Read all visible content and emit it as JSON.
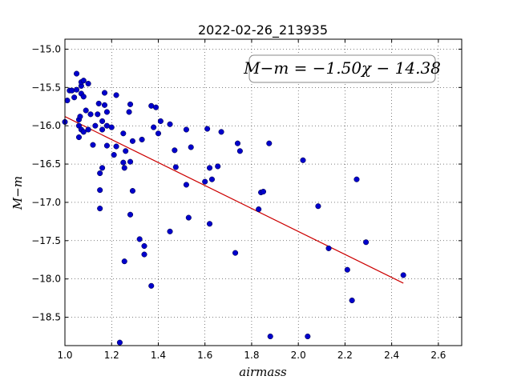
{
  "chart_data": {
    "type": "scatter",
    "title": "2022-02-26_213935",
    "xlabel": "airmass",
    "ylabel": "M−m",
    "xlim": [
      1.0,
      2.7
    ],
    "ylim": [
      -14.87,
      -18.87
    ],
    "xticks": [
      1.0,
      1.2,
      1.4,
      1.6,
      1.8,
      2.0,
      2.2,
      2.4,
      2.6
    ],
    "xtick_labels": [
      "1.0",
      "1.2",
      "1.4",
      "1.6",
      "1.8",
      "2.0",
      "2.2",
      "2.4",
      "2.6"
    ],
    "yticks": [
      -15.0,
      -15.5,
      -16.0,
      -16.5,
      -17.0,
      -17.5,
      -18.0,
      -18.5
    ],
    "ytick_labels": [
      "−15.0",
      "−15.5",
      "−16.0",
      "−16.5",
      "−17.0",
      "−17.5",
      "−18.0",
      "−18.5"
    ],
    "grid": true,
    "annotation": "M−m = −1.50χ − 14.38",
    "fit": {
      "slope": -1.5,
      "intercept": -14.38,
      "x_range": [
        1.0,
        2.45
      ],
      "color": "#cc0000"
    },
    "point_color": "#0000cc",
    "points": [
      [
        1.0,
        -15.95
      ],
      [
        1.01,
        -15.67
      ],
      [
        1.02,
        -15.54
      ],
      [
        1.03,
        -15.54
      ],
      [
        1.04,
        -15.63
      ],
      [
        1.05,
        -15.53
      ],
      [
        1.05,
        -15.32
      ],
      [
        1.06,
        -15.92
      ],
      [
        1.06,
        -16.0
      ],
      [
        1.06,
        -16.15
      ],
      [
        1.065,
        -15.88
      ],
      [
        1.07,
        -16.05
      ],
      [
        1.07,
        -15.48
      ],
      [
        1.07,
        -15.43
      ],
      [
        1.07,
        -15.58
      ],
      [
        1.08,
        -15.41
      ],
      [
        1.08,
        -15.62
      ],
      [
        1.08,
        -16.08
      ],
      [
        1.09,
        -15.8
      ],
      [
        1.1,
        -15.45
      ],
      [
        1.1,
        -16.05
      ],
      [
        1.11,
        -15.85
      ],
      [
        1.12,
        -16.25
      ],
      [
        1.13,
        -16.0
      ],
      [
        1.14,
        -15.85
      ],
      [
        1.145,
        -15.71
      ],
      [
        1.15,
        -16.84
      ],
      [
        1.15,
        -17.08
      ],
      [
        1.15,
        -16.62
      ],
      [
        1.16,
        -16.55
      ],
      [
        1.16,
        -15.94
      ],
      [
        1.16,
        -16.05
      ],
      [
        1.17,
        -15.73
      ],
      [
        1.17,
        -15.57
      ],
      [
        1.18,
        -16.0
      ],
      [
        1.18,
        -15.82
      ],
      [
        1.18,
        -16.26
      ],
      [
        1.2,
        -16.02
      ],
      [
        1.21,
        -16.38
      ],
      [
        1.22,
        -15.6
      ],
      [
        1.22,
        -16.27
      ],
      [
        1.235,
        -18.83
      ],
      [
        1.25,
        -16.1
      ],
      [
        1.25,
        -16.48
      ],
      [
        1.255,
        -16.55
      ],
      [
        1.26,
        -16.33
      ],
      [
        1.255,
        -17.77
      ],
      [
        1.275,
        -15.82
      ],
      [
        1.28,
        -15.72
      ],
      [
        1.28,
        -16.47
      ],
      [
        1.28,
        -17.16
      ],
      [
        1.29,
        -16.85
      ],
      [
        1.29,
        -16.2
      ],
      [
        1.32,
        -17.48
      ],
      [
        1.33,
        -16.18
      ],
      [
        1.34,
        -17.57
      ],
      [
        1.34,
        -17.68
      ],
      [
        1.37,
        -15.74
      ],
      [
        1.37,
        -18.09
      ],
      [
        1.38,
        -16.02
      ],
      [
        1.39,
        -15.76
      ],
      [
        1.4,
        -16.1
      ],
      [
        1.41,
        -15.94
      ],
      [
        1.45,
        -17.38
      ],
      [
        1.45,
        -15.98
      ],
      [
        1.47,
        -16.32
      ],
      [
        1.475,
        -16.54
      ],
      [
        1.52,
        -16.77
      ],
      [
        1.52,
        -16.05
      ],
      [
        1.53,
        -17.2
      ],
      [
        1.54,
        -16.28
      ],
      [
        1.6,
        -16.73
      ],
      [
        1.61,
        -16.04
      ],
      [
        1.62,
        -17.28
      ],
      [
        1.62,
        -16.55
      ],
      [
        1.63,
        -16.7
      ],
      [
        1.655,
        -16.53
      ],
      [
        1.67,
        -16.08
      ],
      [
        1.73,
        -17.66
      ],
      [
        1.74,
        -16.23
      ],
      [
        1.75,
        -16.33
      ],
      [
        1.83,
        -17.09
      ],
      [
        1.84,
        -16.87
      ],
      [
        1.85,
        -16.86
      ],
      [
        1.875,
        -16.23
      ],
      [
        1.88,
        -18.75
      ],
      [
        2.02,
        -16.45
      ],
      [
        2.04,
        -18.75
      ],
      [
        2.085,
        -17.05
      ],
      [
        2.13,
        -17.6
      ],
      [
        2.21,
        -17.88
      ],
      [
        2.23,
        -18.28
      ],
      [
        2.25,
        -16.7
      ],
      [
        2.29,
        -17.52
      ],
      [
        2.45,
        -17.95
      ]
    ]
  }
}
